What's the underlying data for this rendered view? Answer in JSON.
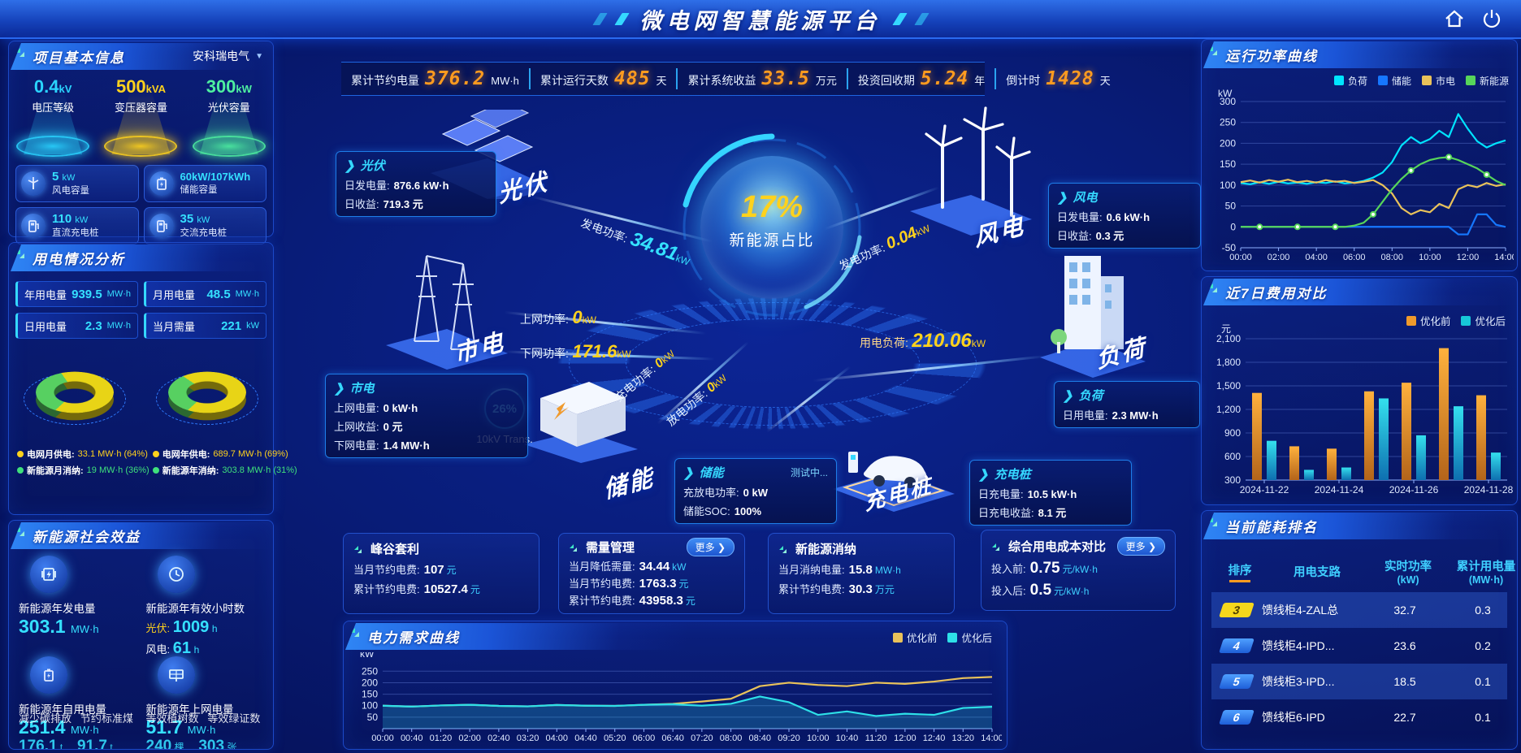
{
  "header": {
    "title": "微电网智慧能源平台"
  },
  "top_stats": [
    {
      "label": "累计节约电量",
      "value": "376.2",
      "unit": "MW·h"
    },
    {
      "label": "累计运行天数",
      "value": "485",
      "unit": "天"
    },
    {
      "label": "累计系统收益",
      "value": "33.5",
      "unit": "万元"
    },
    {
      "label": "投资回收期",
      "value": "5.24",
      "unit": "年"
    },
    {
      "label": "倒计时",
      "value": "1428",
      "unit": "天"
    }
  ],
  "project_info": {
    "title": "项目基本信息",
    "company": "安科瑞电气",
    "pedestals": [
      {
        "value": "0.4",
        "unit": "kV",
        "label": "电压等级",
        "color": "#2ad4ff"
      },
      {
        "value": "500",
        "unit": "kVA",
        "label": "变压器容量",
        "color": "#ffd21c"
      },
      {
        "value": "300",
        "unit": "kW",
        "label": "光伏容量",
        "color": "#4ef0a0"
      }
    ],
    "stats": [
      {
        "value": "5",
        "unit": "kW",
        "label": "风电容量",
        "icon": "wind-turbine-icon"
      },
      {
        "value": "60kW/107kWh",
        "unit": "",
        "label": "储能容量",
        "icon": "battery-icon"
      },
      {
        "value": "110",
        "unit": "kW",
        "label": "直流充电桩",
        "icon": "dc-charger-icon"
      },
      {
        "value": "35",
        "unit": "kW",
        "label": "交流充电桩",
        "icon": "ac-charger-icon"
      }
    ]
  },
  "usage": {
    "title": "用电情况分析",
    "chips": [
      {
        "label": "年用电量",
        "value": "939.5",
        "unit": "MW·h"
      },
      {
        "label": "月用电量",
        "value": "48.5",
        "unit": "MW·h"
      },
      {
        "label": "日用电量",
        "value": "2.3",
        "unit": "MW·h"
      },
      {
        "label": "当月需量",
        "value": "221",
        "unit": "kW"
      }
    ],
    "donuts": [
      {
        "grid_pct": 64,
        "renewable_pct": 36
      },
      {
        "grid_pct": 69,
        "renewable_pct": 31
      }
    ],
    "legend": [
      {
        "label": "电网月供电:",
        "value": "33.1 MW·h (64%)",
        "color": "#ffd21c"
      },
      {
        "label": "电网年供电:",
        "value": "689.7 MW·h (69%)",
        "color": "#ffd21c"
      },
      {
        "label": "新能源月消纳:",
        "value": "19 MW·h (36%)",
        "color": "#3fe07c"
      },
      {
        "label": "新能源年消纳:",
        "value": "303.8 MW·h (31%)",
        "color": "#3fe07c"
      }
    ]
  },
  "social": {
    "title": "新能源社会效益",
    "items": [
      {
        "icon": "generator-icon",
        "label": "新能源年发电量",
        "value": "303.1",
        "unit": "MW·h"
      },
      {
        "icon": "clock-icon",
        "label": "新能源年有效小时数",
        "lines": [
          {
            "label": "光伏:",
            "label_color": "#ffd21c",
            "value": "1009",
            "unit": "h"
          },
          {
            "label": "风电:",
            "label_color": "#ffffff",
            "value": "61",
            "unit": "h"
          }
        ]
      },
      {
        "icon": "battery-icon",
        "label": "新能源年自用电量",
        "value": "251.4",
        "unit": "MW·h",
        "overlay": {
          "labels": [
            "减少碳排放",
            "节约标准煤"
          ],
          "values": [
            {
              "value": "176.1",
              "unit": "t"
            },
            {
              "value": "91.7",
              "unit": "t"
            }
          ]
        }
      },
      {
        "icon": "pv-icon",
        "label": "新能源年上网电量",
        "value": "51.7",
        "unit": "MW·h",
        "overlay": {
          "labels": [
            "等效植树数",
            "等效绿证数"
          ],
          "values": [
            {
              "value": "240",
              "unit": "棵"
            },
            {
              "value": "303",
              "unit": "张"
            }
          ]
        }
      }
    ]
  },
  "diagram": {
    "center": {
      "percent": "17%",
      "label": "新能源占比"
    },
    "nodes": {
      "pv": "光伏",
      "wind": "风电",
      "grid": "市电",
      "load": "负荷",
      "storage": "储能",
      "charger": "充电桩"
    },
    "transformer": {
      "percent": "26%",
      "label": "10kV Trans."
    },
    "flows": {
      "pv_power": {
        "label": "发电功率:",
        "value": "34.81",
        "unit": "kW",
        "color": "#35e1ff"
      },
      "wind_power": {
        "label": "发电功率:",
        "value": "0.04",
        "unit": "kW",
        "color": "#ffd21c"
      },
      "feed_in": {
        "label": "上网功率:",
        "value": "0",
        "unit": "kW",
        "color": "#ffd21c"
      },
      "draw_down": {
        "label": "下网功率:",
        "value": "171.6",
        "unit": "kW",
        "color": "#ffd21c"
      },
      "charge": {
        "label": "充电功率:",
        "value": "0",
        "unit": "kW",
        "color": "#ffd21c"
      },
      "discharge": {
        "label": "放电功率:",
        "value": "0",
        "unit": "kW",
        "color": "#ffd21c"
      },
      "load_power": {
        "label": "用电负荷:",
        "value": "210.06",
        "unit": "kW",
        "color": "#ffd21c"
      }
    },
    "info_boxes": {
      "pv": {
        "title": "光伏",
        "rows": [
          {
            "label": "日发电量:",
            "value": "876.6 kW·h"
          },
          {
            "label": "日收益:",
            "value": "719.3 元"
          }
        ]
      },
      "grid": {
        "title": "市电",
        "rows": [
          {
            "label": "上网电量:",
            "value": "0 kW·h"
          },
          {
            "label": "上网收益:",
            "value": "0 元"
          },
          {
            "label": "下网电量:",
            "value": "1.4 MW·h"
          }
        ]
      },
      "wind": {
        "title": "风电",
        "rows": [
          {
            "label": "日发电量:",
            "value": "0.6 kW·h"
          },
          {
            "label": "日收益:",
            "value": "0.3 元"
          }
        ]
      },
      "load": {
        "title": "负荷",
        "rows": [
          {
            "label": "日用电量:",
            "value": "2.3 MW·h"
          }
        ]
      },
      "storage": {
        "title": "储能",
        "badge": "测试中...",
        "rows": [
          {
            "label": "充放电功率:",
            "value": "0 kW"
          },
          {
            "label": "储能SOC:",
            "value": "100%"
          }
        ]
      },
      "charger": {
        "title": "充电桩",
        "rows": [
          {
            "label": "日充电量:",
            "value": "10.5 kW·h"
          },
          {
            "label": "日充电收益:",
            "value": "8.1 元"
          }
        ]
      }
    }
  },
  "metric_boxes": [
    {
      "title": "峰谷套利",
      "more": false,
      "big": false,
      "rows": [
        {
          "label": "当月节约电费:",
          "value": "107",
          "unit": "元"
        },
        {
          "label": "累计节约电费:",
          "value": "10527.4",
          "unit": "元"
        }
      ]
    },
    {
      "title": "需量管理",
      "more": true,
      "big": false,
      "rows": [
        {
          "label": "当月降低需量:",
          "value": "34.44",
          "unit": "kW"
        },
        {
          "label": "当月节约电费:",
          "value": "1763.3",
          "unit": "元"
        },
        {
          "label": "累计节约电费:",
          "value": "43958.3",
          "unit": "元"
        }
      ]
    },
    {
      "title": "新能源消纳",
      "more": false,
      "big": false,
      "rows": [
        {
          "label": "当月消纳电量:",
          "value": "15.8",
          "unit": "MW·h"
        },
        {
          "label": "累计节约电费:",
          "value": "30.3",
          "unit": "万元"
        }
      ]
    },
    {
      "title": "综合用电成本对比",
      "more": true,
      "big": true,
      "rows": [
        {
          "label": "投入前:",
          "value": "0.75",
          "unit": "元/kW·h"
        },
        {
          "label": "投入后:",
          "value": "0.5",
          "unit": "元/kW·h"
        }
      ]
    }
  ],
  "more_label": "更多 ❯",
  "ranking": {
    "title": "当前能耗排名",
    "columns": [
      {
        "t": "排序",
        "u": ""
      },
      {
        "t": "用电支路",
        "u": ""
      },
      {
        "t": "实时功率",
        "u": "(kW)"
      },
      {
        "t": "累计用电量",
        "u": "(MW·h)"
      }
    ],
    "rows": [
      {
        "rank": "3",
        "style": "gold",
        "branch": "馈线柜4-ZAL总",
        "power": "32.7",
        "energy": "0.3",
        "highlight": true
      },
      {
        "rank": "4",
        "style": "blue",
        "branch": "馈线柜4-IPD...",
        "power": "23.6",
        "energy": "0.2",
        "highlight": false
      },
      {
        "rank": "5",
        "style": "blue",
        "branch": "馈线柜3-IPD...",
        "power": "18.5",
        "energy": "0.1",
        "highlight": true
      },
      {
        "rank": "6",
        "style": "blue",
        "branch": "馈线柜6-IPD",
        "power": "22.7",
        "energy": "0.1",
        "highlight": false
      }
    ]
  },
  "chart_data": [
    {
      "id": "power",
      "type": "line",
      "title": "运行功率曲线",
      "ylabel": "kW",
      "ylim": [
        -50,
        300
      ],
      "yticks": [
        300,
        250,
        200,
        150,
        100,
        50,
        0,
        -50
      ],
      "x": [
        "00:00",
        "00:30",
        "01:00",
        "01:30",
        "02:00",
        "02:30",
        "03:00",
        "03:30",
        "04:00",
        "04:30",
        "05:00",
        "05:30",
        "06:00",
        "06:30",
        "07:00",
        "07:30",
        "08:00",
        "08:30",
        "09:00",
        "09:30",
        "10:00",
        "10:30",
        "11:00",
        "11:30",
        "12:00",
        "12:30",
        "13:00",
        "13:30",
        "14:00"
      ],
      "xtick_every": 4,
      "grid": true,
      "legend_position": "top",
      "series": [
        {
          "name": "负荷",
          "color": "#00e4ff",
          "values": [
            105,
            102,
            107,
            103,
            108,
            104,
            106,
            103,
            107,
            105,
            109,
            104,
            106,
            110,
            118,
            130,
            155,
            195,
            215,
            200,
            210,
            230,
            215,
            270,
            235,
            205,
            190,
            200,
            207
          ]
        },
        {
          "name": "储能",
          "color": "#1677ff",
          "values": [
            0,
            0,
            0,
            0,
            0,
            0,
            0,
            0,
            0,
            0,
            0,
            0,
            0,
            0,
            0,
            0,
            0,
            0,
            0,
            0,
            0,
            0,
            0,
            -18,
            -18,
            30,
            30,
            5,
            0
          ]
        },
        {
          "name": "市电",
          "color": "#e9c25a",
          "values": [
            107,
            111,
            106,
            112,
            108,
            113,
            107,
            110,
            106,
            112,
            108,
            110,
            105,
            108,
            112,
            100,
            80,
            45,
            30,
            40,
            35,
            55,
            45,
            90,
            100,
            95,
            105,
            98,
            102
          ]
        },
        {
          "name": "新能源",
          "color": "#57d55a",
          "dots": true,
          "values": [
            0,
            0,
            0,
            0,
            0,
            0,
            0,
            0,
            0,
            0,
            0,
            0,
            3,
            10,
            30,
            60,
            90,
            115,
            135,
            150,
            160,
            165,
            167,
            160,
            150,
            140,
            125,
            110,
            100
          ]
        }
      ]
    },
    {
      "id": "cost",
      "type": "bar",
      "title": "近7日费用对比",
      "ylabel": "元",
      "ylim": [
        300,
        2100
      ],
      "yticks": [
        2100,
        1800,
        1500,
        1200,
        900,
        600,
        300
      ],
      "categories": [
        "2024-11-22",
        "2024-11-23",
        "2024-11-24",
        "2024-11-25",
        "2024-11-26",
        "2024-11-27",
        "2024-11-28"
      ],
      "xticks": [
        "2024-11-22",
        "2024-11-24",
        "2024-11-26",
        "2024-11-28"
      ],
      "grid": true,
      "legend_position": "top-right",
      "series": [
        {
          "name": "优化前",
          "color": "#f09a2c",
          "values": [
            1410,
            730,
            700,
            1430,
            1540,
            1980,
            1380
          ]
        },
        {
          "name": "优化后",
          "color": "#17c8d8",
          "values": [
            800,
            430,
            460,
            1340,
            870,
            1240,
            650
          ]
        }
      ]
    },
    {
      "id": "demand",
      "type": "line",
      "title": "电力需求曲线",
      "ylabel": "kW",
      "ylim": [
        0,
        290
      ],
      "yticks": [
        250,
        200,
        150,
        100,
        50
      ],
      "x": [
        "00:00",
        "00:40",
        "01:20",
        "02:00",
        "02:40",
        "03:20",
        "04:00",
        "04:40",
        "05:20",
        "06:00",
        "06:40",
        "07:20",
        "08:00",
        "08:40",
        "09:20",
        "10:00",
        "10:40",
        "11:20",
        "12:00",
        "12:40",
        "13:20",
        "14:00"
      ],
      "xtick_every": 1,
      "grid": true,
      "legend_position": "top-right",
      "series": [
        {
          "name": "优化前",
          "color": "#e9c25a",
          "values": [
            100,
            96,
            101,
            104,
            99,
            97,
            103,
            100,
            99,
            104,
            108,
            118,
            130,
            185,
            200,
            190,
            185,
            200,
            195,
            205,
            220,
            225
          ]
        },
        {
          "name": "优化后",
          "color": "#2ee0e8",
          "fill": true,
          "values": [
            100,
            96,
            101,
            104,
            99,
            97,
            103,
            100,
            99,
            104,
            106,
            100,
            108,
            140,
            115,
            60,
            75,
            55,
            65,
            60,
            90,
            95
          ]
        }
      ]
    }
  ]
}
